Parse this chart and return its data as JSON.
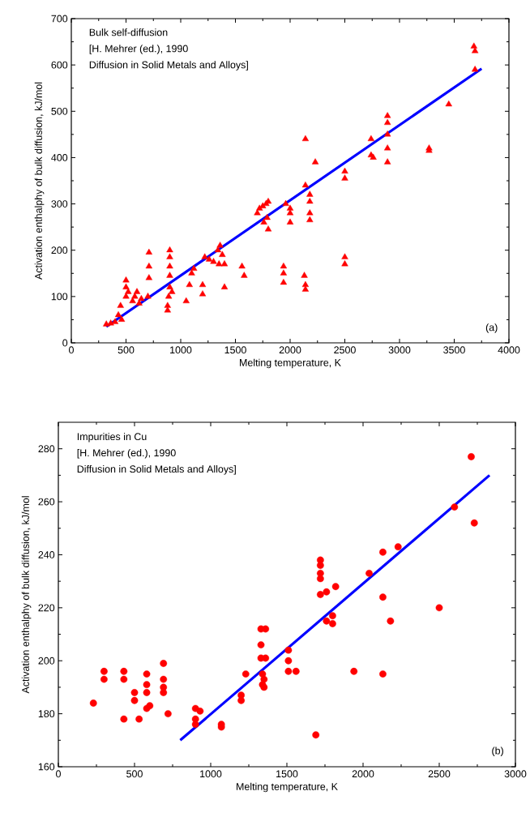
{
  "chart_data": [
    {
      "type": "scatter",
      "xlabel": "Melting temperature, K",
      "ylabel": "Activation enthalphy of bulk diffusion, kJ/mol",
      "xlim": [
        0,
        4000
      ],
      "ylim": [
        0,
        700
      ],
      "xticks": [
        0,
        500,
        1000,
        1500,
        2000,
        2500,
        3000,
        3500,
        4000
      ],
      "yticks": [
        0,
        100,
        200,
        300,
        400,
        500,
        600,
        700
      ],
      "annotations": [
        "Bulk self-diffusion",
        "[H. Mehrer (ed.), 1990",
        "Diffusion in Solid Metals and Alloys]",
        "(a)"
      ],
      "series": [
        {
          "type": "scatter",
          "color": "#ff0000",
          "marker": "triangle",
          "x": [
            320,
            360,
            400,
            430,
            450,
            460,
            500,
            500,
            500,
            520,
            560,
            580,
            600,
            620,
            640,
            700,
            710,
            710,
            710,
            880,
            880,
            890,
            900,
            900,
            900,
            900,
            900,
            920,
            1050,
            1080,
            1100,
            1120,
            1200,
            1200,
            1220,
            1260,
            1300,
            1350,
            1340,
            1360,
            1380,
            1400,
            1400,
            1560,
            1580,
            1700,
            1720,
            1750,
            1780,
            1800,
            1790,
            1800,
            1760,
            1940,
            1940,
            1940,
            1960,
            2000,
            2000,
            2000,
            2140,
            2140,
            2130,
            2140,
            2140,
            2180,
            2180,
            2180,
            2180,
            2230,
            2500,
            2500,
            2500,
            2500,
            2740,
            2740,
            2760,
            2890,
            2890,
            2890,
            2890,
            2890,
            3270,
            3270,
            3450,
            3680,
            3690,
            3690
          ],
          "values": [
            40,
            42,
            45,
            60,
            80,
            50,
            100,
            120,
            135,
            110,
            90,
            100,
            110,
            85,
            95,
            100,
            140,
            165,
            195,
            70,
            80,
            100,
            120,
            145,
            165,
            185,
            200,
            110,
            90,
            125,
            150,
            160,
            105,
            125,
            185,
            180,
            175,
            170,
            200,
            210,
            190,
            170,
            120,
            165,
            145,
            280,
            290,
            295,
            300,
            305,
            270,
            245,
            260,
            165,
            150,
            130,
            300,
            290,
            280,
            260,
            440,
            340,
            145,
            125,
            115,
            320,
            305,
            280,
            265,
            390,
            370,
            355,
            185,
            170,
            440,
            405,
            400,
            490,
            475,
            450,
            420,
            390,
            420,
            415,
            515,
            640,
            630,
            590
          ]
        },
        {
          "type": "line",
          "color": "#0000ff",
          "marker": "none",
          "x": [
            320,
            3750
          ],
          "values": [
            35,
            592
          ]
        }
      ]
    },
    {
      "type": "scatter",
      "xlabel": "Melting temperature, K",
      "ylabel": "Activation enthalphy of bulk diffusion, kJ/mol",
      "xlim": [
        0,
        3000
      ],
      "ylim": [
        160,
        290
      ],
      "xticks": [
        0,
        500,
        1000,
        1500,
        2000,
        2500,
        3000
      ],
      "yticks": [
        160,
        180,
        200,
        220,
        240,
        260,
        280
      ],
      "annotations": [
        "Impurities in Cu",
        "[H. Mehrer (ed.), 1990",
        "Diffusion in Solid Metals and Alloys]",
        "(b)"
      ],
      "series": [
        {
          "type": "scatter",
          "color": "#ff0000",
          "marker": "circle",
          "x": [
            230,
            300,
            300,
            430,
            430,
            430,
            500,
            500,
            530,
            580,
            580,
            580,
            580,
            600,
            690,
            690,
            690,
            690,
            720,
            900,
            900,
            900,
            930,
            1070,
            1070,
            1200,
            1200,
            1230,
            1330,
            1330,
            1330,
            1340,
            1340,
            1350,
            1360,
            1360,
            1350,
            1510,
            1510,
            1510,
            1560,
            1690,
            1720,
            1720,
            1720,
            1720,
            1720,
            1760,
            1760,
            1800,
            1800,
            1820,
            1940,
            2040,
            2130,
            2130,
            2130,
            2180,
            2230,
            2500,
            2600,
            2710,
            2730
          ],
          "values": [
            184,
            196,
            193,
            196,
            193,
            178,
            188,
            185,
            178,
            195,
            191,
            188,
            182,
            183,
            199,
            193,
            190,
            188,
            180,
            182,
            178,
            176,
            181,
            176,
            175,
            187,
            185,
            195,
            212,
            206,
            201,
            195,
            191,
            190,
            212,
            201,
            193,
            204,
            200,
            196,
            196,
            172,
            238,
            236,
            233,
            231,
            225,
            226,
            215,
            217,
            214,
            228,
            196,
            233,
            241,
            224,
            195,
            215,
            243,
            220,
            258,
            277,
            252
          ]
        },
        {
          "type": "line",
          "color": "#0000ff",
          "marker": "none",
          "x": [
            800,
            2830
          ],
          "values": [
            170,
            270
          ]
        }
      ]
    }
  ]
}
